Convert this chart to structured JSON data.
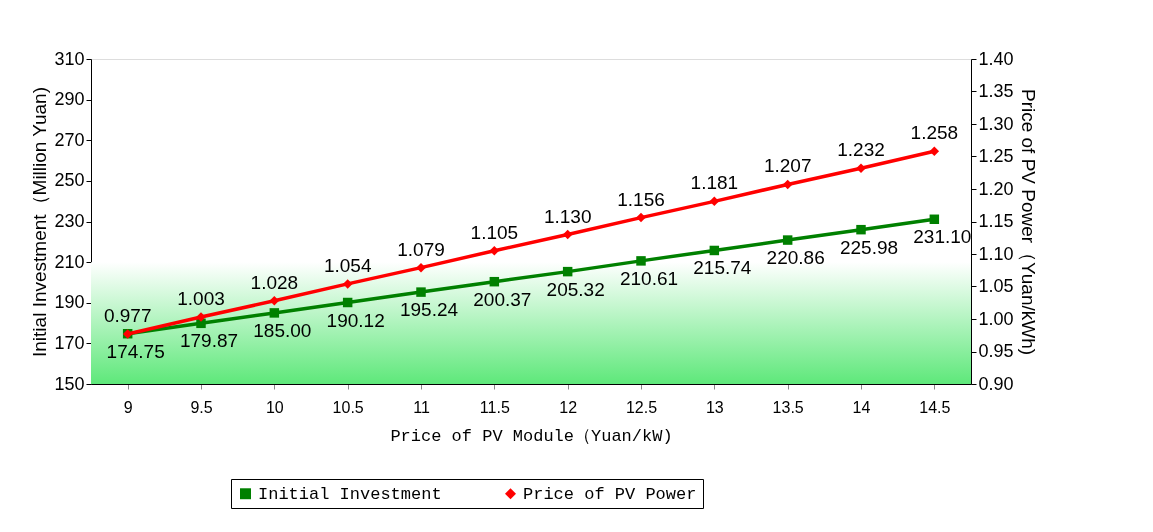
{
  "chart_data": {
    "type": "line",
    "xlabel": "Price of PV Module（Yuan/kW)",
    "ylabel": "Initial Investment（Million Yuan)",
    "y2label": "Price of PV Power（Yuan/kWh)",
    "categories": [
      "9",
      "9.5",
      "10",
      "10.5",
      "11",
      "11.5",
      "12",
      "12.5",
      "13",
      "13.5",
      "14",
      "14.5"
    ],
    "series": [
      {
        "name": "Initial Investment",
        "color": "#008000",
        "marker": "square",
        "values": [
          174.75,
          179.87,
          185.0,
          190.12,
          195.24,
          200.37,
          205.32,
          210.61,
          215.74,
          220.86,
          225.98,
          231.1
        ],
        "value_labels": [
          "174.75",
          "179.87",
          "185.00",
          "190.12",
          "195.24",
          "200.37",
          "205.32",
          "210.61",
          "215.74",
          "220.86",
          "225.98",
          "231.10"
        ]
      },
      {
        "name": "Price of PV Power",
        "color": "#ff0000",
        "marker": "diamond",
        "axis": "y2",
        "values": [
          0.977,
          1.003,
          1.028,
          1.054,
          1.079,
          1.105,
          1.13,
          1.156,
          1.181,
          1.207,
          1.232,
          1.258
        ],
        "value_labels": [
          "0.977",
          "1.003",
          "1.028",
          "1.054",
          "1.079",
          "1.105",
          "1.130",
          "1.156",
          "1.181",
          "1.207",
          "1.232",
          "1.258"
        ]
      }
    ],
    "ylim": [
      150,
      310
    ],
    "yticks": [
      150,
      170,
      190,
      210,
      230,
      250,
      270,
      290,
      310
    ],
    "y2lim": [
      0.9,
      1.4
    ],
    "y2ticks": [
      {
        "value": 0.9,
        "label": "0.90"
      },
      {
        "value": 0.95,
        "label": "0.95"
      },
      {
        "value": 1.0,
        "label": "1.00"
      },
      {
        "value": 1.05,
        "label": "1.05"
      },
      {
        "value": 1.1,
        "label": "1.10"
      },
      {
        "value": 1.15,
        "label": "1.15"
      },
      {
        "value": 1.2,
        "label": "1.20"
      },
      {
        "value": 1.25,
        "label": "1.25"
      },
      {
        "value": 1.3,
        "label": "1.30"
      },
      {
        "value": 1.35,
        "label": "1.35"
      },
      {
        "value": 1.4,
        "label": "1.40"
      }
    ],
    "bands": [
      {
        "axis": "y",
        "from": 150,
        "to": 210,
        "color": "#5ee87a"
      }
    ],
    "grid": false,
    "legend": "bottom",
    "line_style": "solid"
  }
}
